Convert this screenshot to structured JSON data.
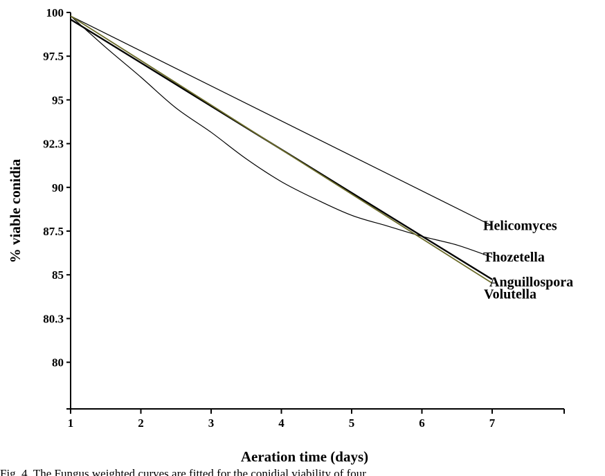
{
  "chart_data": {
    "type": "line",
    "xlabel": "Aeration time (days)",
    "ylabel": "% viable conidia",
    "x_ticks": [
      1,
      2,
      3,
      4,
      5,
      6,
      7
    ],
    "y_tick_labels": [
      "100",
      "97.5",
      "95",
      "92.3",
      "90",
      "87.5",
      "85",
      "80.3",
      "80"
    ],
    "xlim": [
      1,
      8
    ],
    "grid": false,
    "legend": "inline labels at line ends",
    "series": [
      {
        "name": "Helicomyces",
        "color": "#000000",
        "x": [
          1,
          7
        ],
        "y": [
          99.8,
          87.8
        ]
      },
      {
        "name": "Thozetella",
        "color": "#000000",
        "x": [
          1,
          1.5,
          2,
          2.5,
          3,
          3.5,
          4,
          4.5,
          5,
          5.5,
          6,
          6.5,
          7
        ],
        "y": [
          99.8,
          98.0,
          96.3,
          94.5,
          93.0,
          91.5,
          90.3,
          89.3,
          88.4,
          87.8,
          87.2,
          86.7,
          86.0
        ]
      },
      {
        "name": "Anguillospora",
        "color": "#000000",
        "x": [
          1,
          7
        ],
        "y": [
          99.6,
          84.5
        ]
      },
      {
        "name": "Volutella",
        "color": "#6b6b2a",
        "x": [
          1,
          7
        ],
        "y": [
          99.8,
          84.1
        ]
      }
    ]
  },
  "caption": "Fig. 4. The Fungus weighted curves are fitted for the conidial viability of four"
}
